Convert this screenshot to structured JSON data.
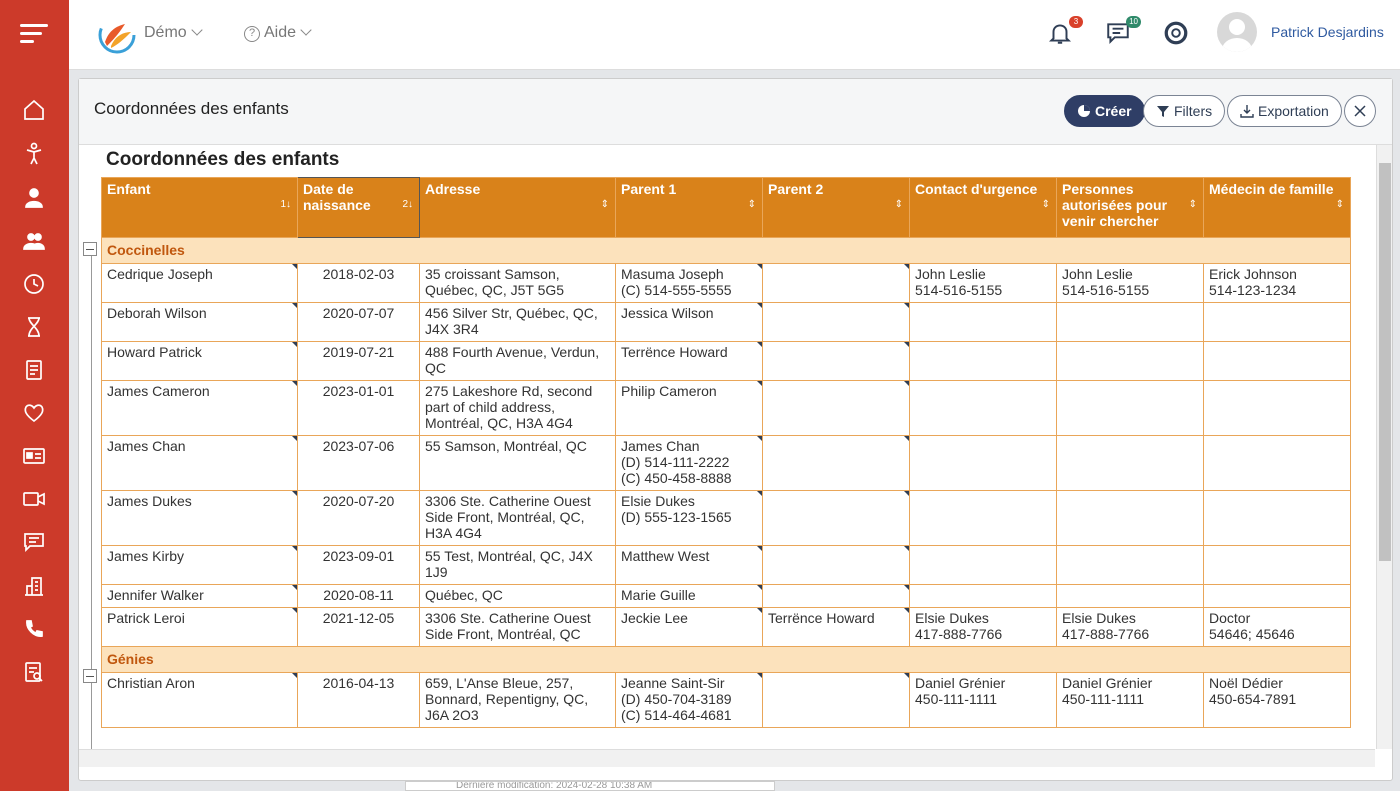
{
  "topbar": {
    "org_label": "Démo",
    "help_label": "Aide",
    "notifications_count": "3",
    "messages_count": "10",
    "user_name": "Patrick Desjardins"
  },
  "colors": {
    "sidebar": "#cc3a2a",
    "header_orange": "#d9821a",
    "group_bg": "#fce2bc",
    "primary_button": "#2f3e66"
  },
  "panel": {
    "title": "Coordonnées des enfants",
    "create_label": "Créer",
    "filters_label": "Filters",
    "export_label": "Exportation"
  },
  "report": {
    "title": "Coordonnées des enfants",
    "columns": [
      {
        "label": "Enfant",
        "sort": "1↓"
      },
      {
        "label": "Date de naissance",
        "sort": "2↓"
      },
      {
        "label": "Adresse",
        "sort": "⇕"
      },
      {
        "label": "Parent 1",
        "sort": "⇕"
      },
      {
        "label": "Parent 2",
        "sort": "⇕"
      },
      {
        "label": "Contact d'urgence",
        "sort": "⇕"
      },
      {
        "label": "Personnes autorisées pour venir chercher",
        "sort": "⇕"
      },
      {
        "label": "Médecin de famille",
        "sort": "⇕"
      }
    ],
    "groups": [
      {
        "name": "Coccinelles",
        "rows": [
          {
            "enfant": "Cedrique Joseph",
            "date": "2018-02-03",
            "adresse": "35 croissant Samson, Québec, QC, J5T 5G5",
            "parent1": "Masuma Joseph\n(C) 514-555-5555",
            "parent2": "",
            "urgence": "John Leslie\n514-516-5155",
            "autorisees": "John Leslie\n514-516-5155",
            "medecin": "Erick Johnson\n514-123-1234"
          },
          {
            "enfant": "Deborah Wilson",
            "date": "2020-07-07",
            "adresse": "456 Silver Str, Québec, QC, J4X 3R4",
            "parent1": "Jessica Wilson",
            "parent2": "",
            "urgence": "",
            "autorisees": "",
            "medecin": ""
          },
          {
            "enfant": "Howard Patrick",
            "date": "2019-07-21",
            "adresse": "488 Fourth Avenue, Verdun, QC",
            "parent1": "Terrënce Howard",
            "parent2": "",
            "urgence": "",
            "autorisees": "",
            "medecin": ""
          },
          {
            "enfant": "James Cameron",
            "date": "2023-01-01",
            "adresse": "275 Lakeshore Rd, second part of child address, Montréal, QC, H3A 4G4",
            "parent1": "Philip Cameron",
            "parent2": "",
            "urgence": "",
            "autorisees": "",
            "medecin": ""
          },
          {
            "enfant": "James Chan",
            "date": "2023-07-06",
            "adresse": "55 Samson, Montréal, QC",
            "parent1": "James Chan\n(D) 514-111-2222\n(C) 450-458-8888",
            "parent2": "",
            "urgence": "",
            "autorisees": "",
            "medecin": ""
          },
          {
            "enfant": "James Dukes",
            "date": "2020-07-20",
            "adresse": "3306 Ste. Catherine Ouest Side Front, Montréal, QC, H3A 4G4",
            "parent1": "Elsie Dukes\n(D) 555-123-1565",
            "parent2": "",
            "urgence": "",
            "autorisees": "",
            "medecin": ""
          },
          {
            "enfant": "James Kirby",
            "date": "2023-09-01",
            "adresse": "55 Test, Montréal, QC, J4X 1J9",
            "parent1": "Matthew West",
            "parent2": "",
            "urgence": "",
            "autorisees": "",
            "medecin": ""
          },
          {
            "enfant": "Jennifer Walker",
            "date": "2020-08-11",
            "adresse": "Québec, QC",
            "parent1": "Marie Guille",
            "parent2": "",
            "urgence": "",
            "autorisees": "",
            "medecin": ""
          },
          {
            "enfant": "Patrick Leroi",
            "date": "2021-12-05",
            "adresse": "3306 Ste. Catherine Ouest Side Front, Montréal, QC",
            "parent1": "Jeckie Lee",
            "parent2": "Terrënce Howard",
            "urgence": "Elsie Dukes\n417-888-7766",
            "autorisees": "Elsie Dukes\n417-888-7766",
            "medecin": "Doctor\n54646; 45646"
          }
        ]
      },
      {
        "name": "Génies",
        "rows": [
          {
            "enfant": "Christian Aron",
            "date": "2016-04-13",
            "adresse": "659, L'Anse Bleue, 257, Bonnard, Repentigny, QC, J6A 2O3",
            "parent1": "Jeanne Saint-Sir\n(D) 450-704-3189\n(C) 514-464-4681",
            "parent2": "",
            "urgence": "Daniel Grénier\n450-111-1111",
            "autorisees": "Daniel Grénier\n450-111-1111",
            "medecin": "Noël Dédier\n450-654-7891"
          }
        ]
      }
    ]
  },
  "footer_peek": "Dernière modification: 2024-02-28 10:38 AM",
  "sidebar_icons": [
    "home-icon",
    "child-icon",
    "person-icon",
    "group-icon",
    "clock-icon",
    "hourglass-icon",
    "checklist-icon",
    "heart-icon",
    "id-card-icon",
    "video-icon",
    "chat-icon",
    "building-icon",
    "phone-icon",
    "report-icon"
  ]
}
